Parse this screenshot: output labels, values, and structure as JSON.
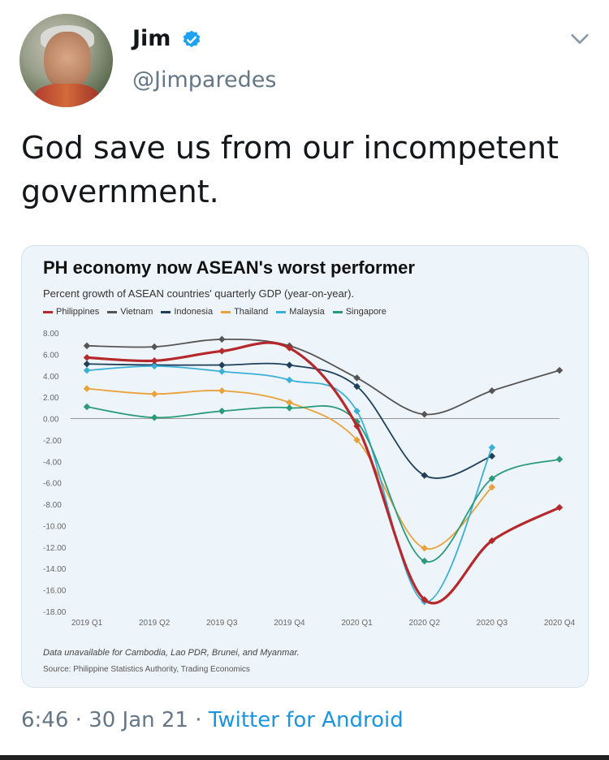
{
  "tweet": {
    "display_name": "Jim",
    "handle": "@Jimparedes",
    "text": "God save us from our  incompetent government.",
    "time": "6:46",
    "date": "30 Jan 21",
    "source_app": "Twitter for Android",
    "separator": "·",
    "verified_color": "#1da1f2"
  },
  "chart_data": {
    "type": "line",
    "title": "PH economy now ASEAN's worst performer",
    "subtitle": "Percent growth of ASEAN countries' quarterly GDP (year-on-year).",
    "categories": [
      "2019 Q1",
      "2019 Q2",
      "2019 Q3",
      "2019 Q4",
      "2020 Q1",
      "2020 Q2",
      "2020 Q3",
      "2020 Q4"
    ],
    "y_ticks": [
      "8.00",
      "6.00",
      "4.00",
      "2.00",
      "0.00",
      "-2.00",
      "-4.00",
      "-6.00",
      "-8.00",
      "-10.00",
      "-12.00",
      "-14.00",
      "-16.00",
      "-18.00"
    ],
    "ylim": [
      -18,
      8
    ],
    "legend_position": "top-left",
    "series": [
      {
        "name": "Philippines",
        "color": "#b5282b",
        "values": [
          5.7,
          5.4,
          6.3,
          6.6,
          -0.7,
          -16.9,
          -11.4,
          -8.3
        ]
      },
      {
        "name": "Vietnam",
        "color": "#555555",
        "values": [
          6.8,
          6.7,
          7.4,
          6.8,
          3.8,
          0.4,
          2.6,
          4.5
        ]
      },
      {
        "name": "Indonesia",
        "color": "#1f3f5b",
        "values": [
          5.1,
          5.0,
          5.0,
          5.0,
          3.0,
          -5.3,
          -3.5,
          null
        ]
      },
      {
        "name": "Thailand",
        "color": "#e9a23b",
        "values": [
          2.8,
          2.3,
          2.6,
          1.5,
          -2.0,
          -12.1,
          -6.4,
          null
        ]
      },
      {
        "name": "Malaysia",
        "color": "#3bb0d6",
        "values": [
          4.5,
          4.9,
          4.4,
          3.6,
          0.7,
          -17.1,
          -2.7,
          null
        ]
      },
      {
        "name": "Singapore",
        "color": "#2b9a7a",
        "values": [
          1.1,
          0.1,
          0.7,
          1.0,
          -0.3,
          -13.3,
          -5.6,
          -3.8
        ]
      }
    ],
    "note": "Data unavailable for Cambodia, Lao PDR, Brunei, and Myanmar.",
    "source": "Source: Philippine Statistics Authority, Trading Economics"
  }
}
